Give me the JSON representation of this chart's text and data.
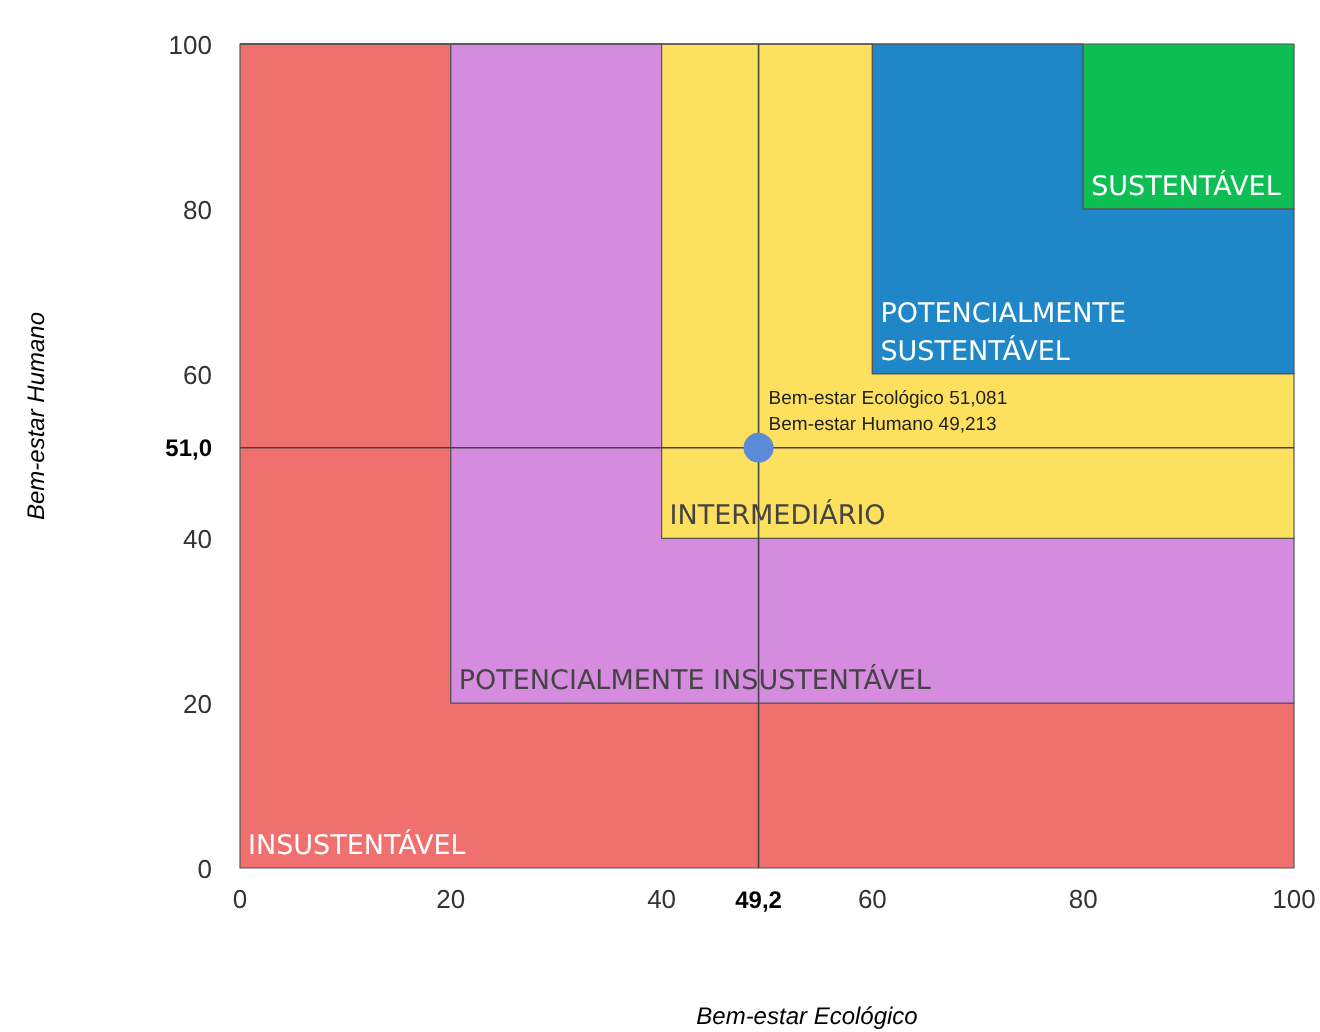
{
  "chart_data": {
    "type": "area",
    "stacked": true,
    "xlabel": "Bem-estar Ecológico",
    "ylabel": "Bem-estar Humano",
    "xlim": [
      0,
      100
    ],
    "ylim": [
      0,
      100
    ],
    "xticks": [
      0,
      20,
      40,
      60,
      80,
      100
    ],
    "yticks": [
      0,
      20,
      40,
      60,
      80,
      100
    ],
    "x": [
      0,
      20,
      20,
      40,
      40,
      60,
      60,
      80,
      80,
      100
    ],
    "series": [
      {
        "name": "INSUSTENTÁVEL",
        "color": "#f07070",
        "values": [
          100,
          100,
          20,
          20,
          20,
          20,
          20,
          20,
          20,
          20
        ]
      },
      {
        "name": "POTENCIALMENTE INSUSTENTÁVEL",
        "color": "#d58bde",
        "values": [
          0,
          0,
          80,
          80,
          20,
          20,
          20,
          20,
          20,
          20
        ]
      },
      {
        "name": "INTERMEDIÁRIO",
        "color": "#fde05e",
        "values": [
          0,
          0,
          0,
          0,
          60,
          60,
          20,
          20,
          20,
          20
        ]
      },
      {
        "name": "POTENCIALMENTE\nSUSTENTÁVEL",
        "color": "#1f86c8",
        "values": [
          0,
          0,
          0,
          0,
          0,
          0,
          40,
          40,
          20,
          20
        ]
      },
      {
        "name": "SUSTENTÁVEL",
        "color": "#0fbd55",
        "values": [
          0,
          0,
          0,
          0,
          0,
          0,
          0,
          0,
          20,
          20
        ]
      },
      {
        "type": "scatter",
        "color": "#5b8bd8",
        "x": [
          49.2
        ],
        "values": [
          51.0
        ],
        "marker": "circle"
      }
    ],
    "ref_lines": [
      {
        "axis": "x",
        "value": 49.2,
        "label": "49,2",
        "color": "#444444"
      },
      {
        "axis": "y",
        "value": 51.0,
        "label": "51,0",
        "color": "#444444"
      }
    ],
    "annotations": [
      {
        "text": "Bem-estar Ecológico 51,081\nBem-estar Humano 49,213",
        "x": 49.2,
        "y": 51.0
      }
    ]
  }
}
